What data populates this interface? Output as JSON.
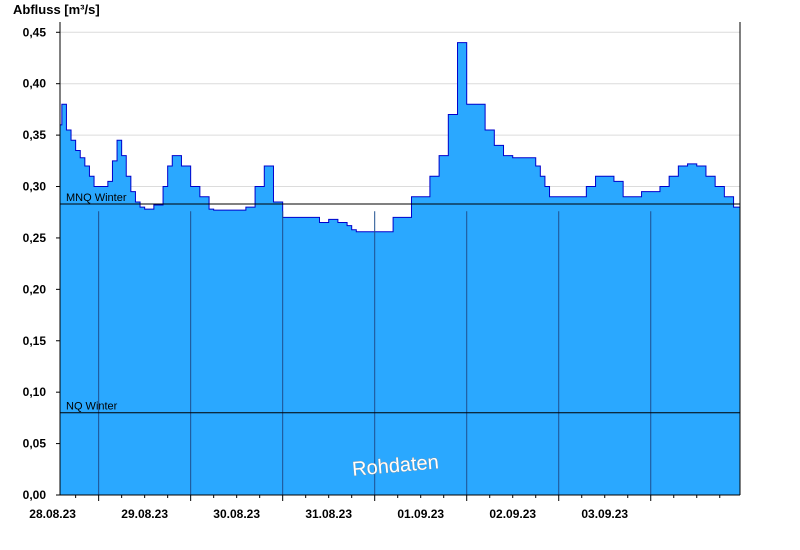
{
  "chart_data": {
    "type": "area",
    "ylabel": "Abfluss [m³/s]",
    "ylim": [
      0,
      0.46
    ],
    "y_ticks": [
      "0,00",
      "0,05",
      "0,10",
      "0,15",
      "0,20",
      "0,25",
      "0,30",
      "0,35",
      "0,40",
      "0,45"
    ],
    "x_ticks": [
      "28.08.23",
      "29.08.23",
      "30.08.23",
      "31.08.23",
      "01.09.23",
      "02.09.23",
      "03.09.23"
    ],
    "grid": true,
    "reference_lines": [
      {
        "label": "MNQ Winter",
        "value": 0.283
      },
      {
        "label": "NQ Winter",
        "value": 0.08
      }
    ],
    "watermark": "Rohdaten",
    "colors": {
      "fill": "#2aa8ff",
      "line": "#0000cc",
      "day_line": "#1f4f8f",
      "ref_line": "#000000"
    },
    "series": [
      {
        "x": [
          27.58,
          27.6,
          27.65,
          27.7,
          27.75,
          27.8,
          27.85,
          27.9,
          27.95,
          28.0,
          28.05,
          28.1,
          28.15,
          28.2,
          28.25,
          28.3,
          28.35,
          28.4,
          28.45,
          28.5,
          28.6,
          28.7,
          28.75,
          28.8,
          28.85,
          28.9,
          29.0,
          29.1,
          29.2,
          29.25,
          29.3,
          29.35,
          29.4,
          29.5,
          29.6,
          29.7,
          29.8,
          29.9,
          30.0,
          30.2,
          30.4,
          30.5,
          30.6,
          30.7,
          30.75,
          30.8,
          30.9,
          31.0,
          31.2,
          31.4,
          31.6,
          31.7,
          31.8,
          31.9,
          32.0,
          32.2,
          32.3,
          32.4,
          32.5,
          32.6,
          32.7,
          32.75,
          32.8,
          32.85,
          32.9,
          32.95,
          33.0,
          33.1,
          33.2,
          33.3,
          33.4,
          33.5,
          33.6,
          33.7,
          33.8,
          33.9,
          34.0,
          34.1,
          34.2,
          34.3,
          34.4,
          34.5,
          34.6,
          34.7,
          34.8,
          34.9,
          34.97
        ],
        "values": [
          0.36,
          0.38,
          0.355,
          0.345,
          0.335,
          0.328,
          0.32,
          0.31,
          0.3,
          0.3,
          0.3,
          0.305,
          0.325,
          0.345,
          0.33,
          0.31,
          0.295,
          0.285,
          0.28,
          0.278,
          0.282,
          0.3,
          0.32,
          0.33,
          0.33,
          0.32,
          0.3,
          0.29,
          0.278,
          0.277,
          0.277,
          0.277,
          0.277,
          0.277,
          0.28,
          0.3,
          0.32,
          0.285,
          0.27,
          0.27,
          0.265,
          0.268,
          0.265,
          0.262,
          0.258,
          0.256,
          0.256,
          0.256,
          0.27,
          0.29,
          0.31,
          0.33,
          0.37,
          0.44,
          0.38,
          0.355,
          0.34,
          0.33,
          0.328,
          0.328,
          0.328,
          0.32,
          0.31,
          0.3,
          0.29,
          0.29,
          0.29,
          0.29,
          0.29,
          0.3,
          0.31,
          0.31,
          0.305,
          0.29,
          0.29,
          0.295,
          0.295,
          0.3,
          0.31,
          0.32,
          0.322,
          0.32,
          0.31,
          0.3,
          0.29,
          0.28,
          0.265
        ]
      }
    ]
  }
}
